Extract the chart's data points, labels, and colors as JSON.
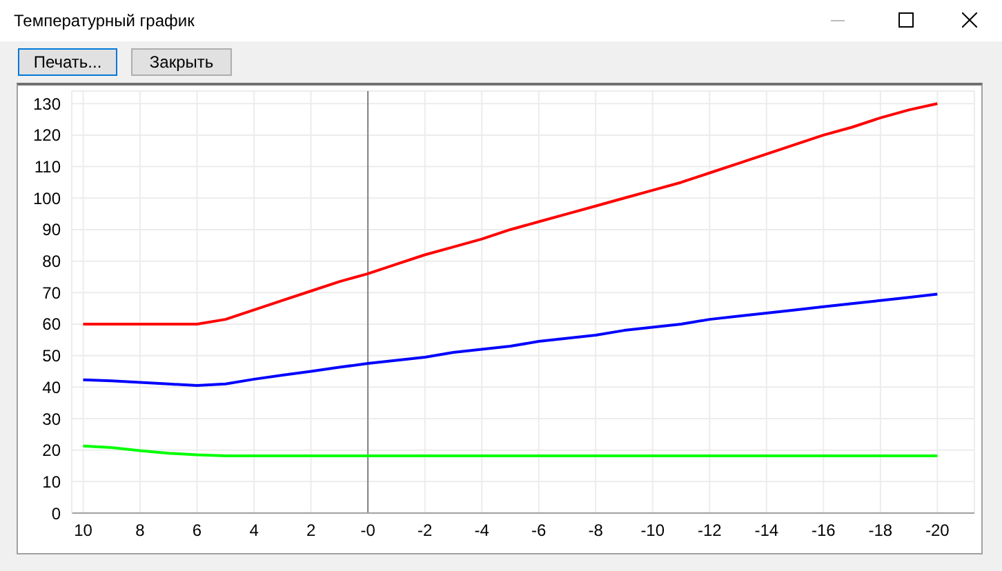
{
  "chart_data": {
    "type": "line",
    "title": "Температурный график",
    "annotations": [
      "Печать...",
      "Закрыть"
    ],
    "x": [
      10,
      9,
      8,
      7,
      6,
      5,
      4,
      3,
      2,
      1,
      0,
      -1,
      -2,
      -3,
      -4,
      -5,
      -6,
      -7,
      -8,
      -9,
      -10,
      -11,
      -12,
      -13,
      -14,
      -15,
      -16,
      -17,
      -18,
      -19,
      -20
    ],
    "series": [
      {
        "color": "#ff0000",
        "values": [
          60,
          60,
          60,
          60,
          60,
          61.5,
          64.5,
          67.5,
          70.5,
          73.5,
          76,
          79,
          82,
          84.5,
          87,
          90,
          92.5,
          95,
          97.5,
          100,
          102.5,
          105,
          108,
          111,
          114,
          117,
          120,
          122.5,
          125.5,
          128,
          130
        ]
      },
      {
        "color": "#0000ff",
        "values": [
          42.3,
          42,
          41.5,
          41,
          40.5,
          41,
          42.5,
          43.8,
          45,
          46.3,
          47.5,
          48.5,
          49.5,
          51,
          52,
          53,
          54.5,
          55.5,
          56.5,
          58,
          59,
          60,
          61.5,
          62.5,
          63.5,
          64.5,
          65.5,
          66.5,
          67.5,
          68.5,
          69.5
        ]
      },
      {
        "color": "#00ff00",
        "values": [
          21.3,
          20.8,
          19.8,
          19,
          18.5,
          18.2,
          18.2,
          18.2,
          18.2,
          18.2,
          18.2,
          18.2,
          18.2,
          18.2,
          18.2,
          18.2,
          18.2,
          18.2,
          18.2,
          18.2,
          18.2,
          18.2,
          18.2,
          18.2,
          18.2,
          18.2,
          18.2,
          18.2,
          18.2,
          18.2,
          18.2
        ]
      }
    ],
    "xlim": [
      10.4,
      -21.3
    ],
    "xticks": [
      10,
      8,
      6,
      4,
      2,
      {
        "value": 0,
        "label": "-0"
      },
      -2,
      -4,
      -6,
      -8,
      -10,
      -12,
      -14,
      -16,
      -18,
      -20
    ],
    "ylim": [
      0,
      134
    ],
    "yticks": [
      0,
      10,
      20,
      30,
      40,
      50,
      60,
      70,
      80,
      90,
      100,
      110,
      120,
      130
    ],
    "ref_lines": [
      {
        "axis": "x",
        "value": 0,
        "color": "#808080"
      }
    ],
    "grid": true,
    "marker": "none",
    "line_style": "solid"
  }
}
